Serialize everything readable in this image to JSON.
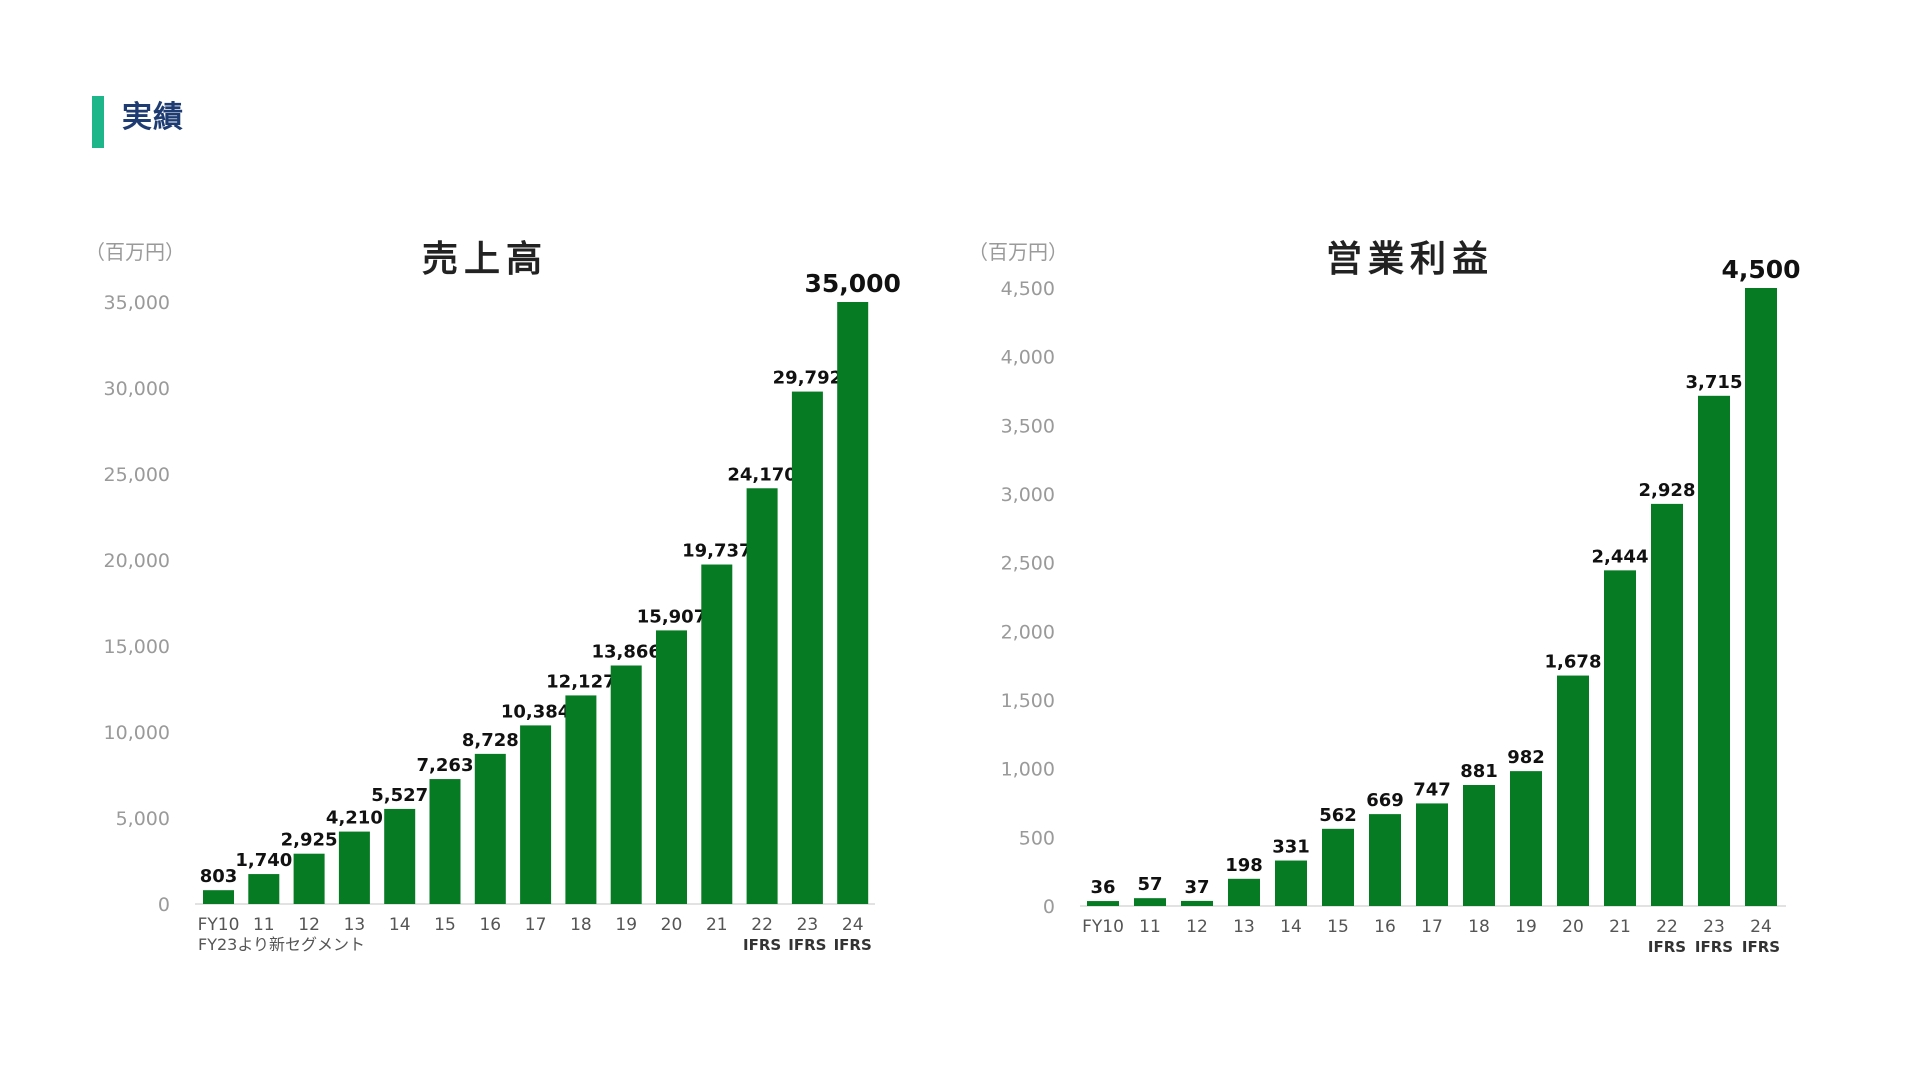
{
  "header": {
    "title": "実績",
    "accent_color": "#1db58a",
    "title_color": "#1f3c72"
  },
  "chart_data": [
    {
      "type": "bar",
      "title": "売上高",
      "unit": "（百万円）",
      "ylim": [
        0,
        35000
      ],
      "yticks": [
        "0",
        "5,000",
        "10,000",
        "15,000",
        "20,000",
        "25,000",
        "30,000",
        "35,000"
      ],
      "categories": [
        "FY10",
        "11",
        "12",
        "13",
        "14",
        "15",
        "16",
        "17",
        "18",
        "19",
        "20",
        "21",
        "22",
        "23",
        "24"
      ],
      "ifrs_note": "IFRS",
      "ifrs_categories": [
        "22",
        "23",
        "24"
      ],
      "x_note": "FY23より新セグメント",
      "values": [
        803,
        1740,
        2925,
        4210,
        5527,
        7263,
        8728,
        10384,
        12127,
        13866,
        15907,
        19737,
        24170,
        29792,
        35000
      ],
      "value_labels": [
        "803",
        "1,740",
        "2,925",
        "4,210",
        "5,527",
        "7,263",
        "8,728",
        "10,384",
        "12,127",
        "13,866",
        "15,907",
        "19,737",
        "24,170",
        "29,792",
        "35,000"
      ],
      "bar_color": "#067b23",
      "grid": false
    },
    {
      "type": "bar",
      "title": "営業利益",
      "unit": "（百万円）",
      "ylim": [
        0,
        4500
      ],
      "yticks": [
        "0",
        "500",
        "1,000",
        "1,500",
        "2,000",
        "2,500",
        "3,000",
        "3,500",
        "4,000",
        "4,500"
      ],
      "categories": [
        "FY10",
        "11",
        "12",
        "13",
        "14",
        "15",
        "16",
        "17",
        "18",
        "19",
        "20",
        "21",
        "22",
        "23",
        "24"
      ],
      "ifrs_note": "IFRS",
      "ifrs_categories": [
        "22",
        "23",
        "24"
      ],
      "values": [
        36,
        57,
        37,
        198,
        331,
        562,
        669,
        747,
        881,
        982,
        1678,
        2444,
        2928,
        3715,
        4500
      ],
      "value_labels": [
        "36",
        "57",
        "37",
        "198",
        "331",
        "562",
        "669",
        "747",
        "881",
        "982",
        "1,678",
        "2,444",
        "2,928",
        "3,715",
        "4,500"
      ],
      "bar_color": "#067b23",
      "grid": false
    }
  ]
}
